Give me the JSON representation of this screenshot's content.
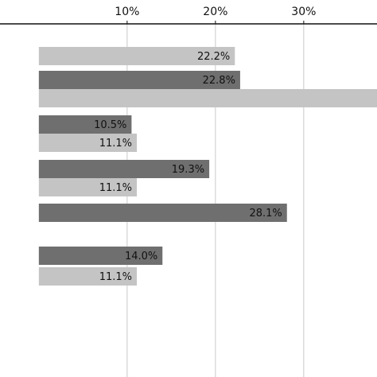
{
  "chart_data": {
    "type": "bar",
    "orientation": "horizontal",
    "x_axis_position": "top",
    "xlim": [
      -4.4,
      38.3
    ],
    "xticks": [
      10,
      20,
      30
    ],
    "tick_labels": [
      "10%",
      "20%",
      "30%"
    ],
    "grid": true,
    "colors": {
      "dark": "#6f6f6f",
      "light": "#c4c4c4",
      "grid": "#c9c9c9",
      "axis": "#111111"
    },
    "bars": [
      {
        "tone": "light",
        "value": 22.2,
        "label": "22.2%"
      },
      {
        "tone": "dark",
        "value": 22.8,
        "label": "22.8%"
      },
      {
        "tone": "light",
        "value": 38.3,
        "label": ""
      },
      {
        "tone": "dark",
        "value": 10.5,
        "label": "10.5%"
      },
      {
        "tone": "light",
        "value": 11.1,
        "label": "11.1%"
      },
      {
        "tone": "dark",
        "value": 19.3,
        "label": "19.3%"
      },
      {
        "tone": "light",
        "value": 11.1,
        "label": "11.1%"
      },
      {
        "tone": "dark",
        "value": 28.1,
        "label": "28.1%"
      },
      {
        "tone": "dark",
        "value": 14.0,
        "label": "14.0%"
      },
      {
        "tone": "light",
        "value": 11.1,
        "label": "11.1%"
      }
    ]
  }
}
